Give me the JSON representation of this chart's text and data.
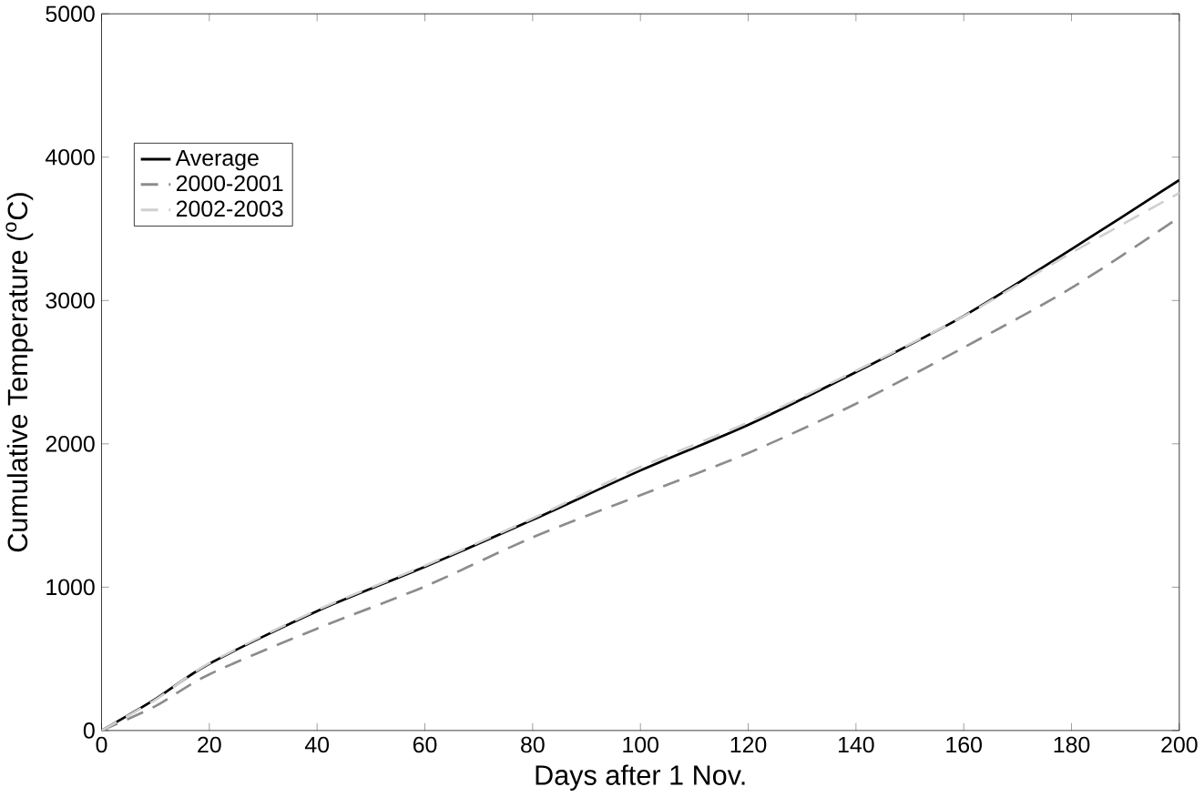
{
  "chart_data": {
    "type": "line",
    "xlabel": "Days after 1 Nov.",
    "ylabel": "Cumulative Temperature ($^{o}$C)",
    "x": [
      0,
      10,
      20,
      40,
      60,
      80,
      100,
      120,
      140,
      160,
      180,
      200
    ],
    "series": [
      {
        "name": "Average",
        "color": "#000000",
        "line_style": "solid",
        "values": [
          0,
          220,
          466,
          833,
          1142,
          1470,
          1814,
          2132,
          2500,
          2892,
          3358,
          3840
        ]
      },
      {
        "name": "2000-2001",
        "color": "#8c8c8c",
        "line_style": "dashed",
        "values": [
          0,
          170,
          392,
          711,
          1005,
          1348,
          1642,
          1936,
          2280,
          2672,
          3088,
          3580
        ]
      },
      {
        "name": "2002-2003",
        "color": "#d0d0d0",
        "line_style": "dashed",
        "values": [
          0,
          215,
          470,
          840,
          1150,
          1480,
          1838,
          2150,
          2510,
          2890,
          3333,
          3750
        ]
      }
    ],
    "xlim": [
      0,
      200
    ],
    "ylim": [
      0,
      5000
    ],
    "xticks": [
      0,
      20,
      40,
      60,
      80,
      100,
      120,
      140,
      160,
      180,
      200
    ],
    "yticks": [
      0,
      1000,
      2000,
      3000,
      4000,
      5000
    ],
    "legend": "top left",
    "grid": false,
    "marker": "none"
  }
}
